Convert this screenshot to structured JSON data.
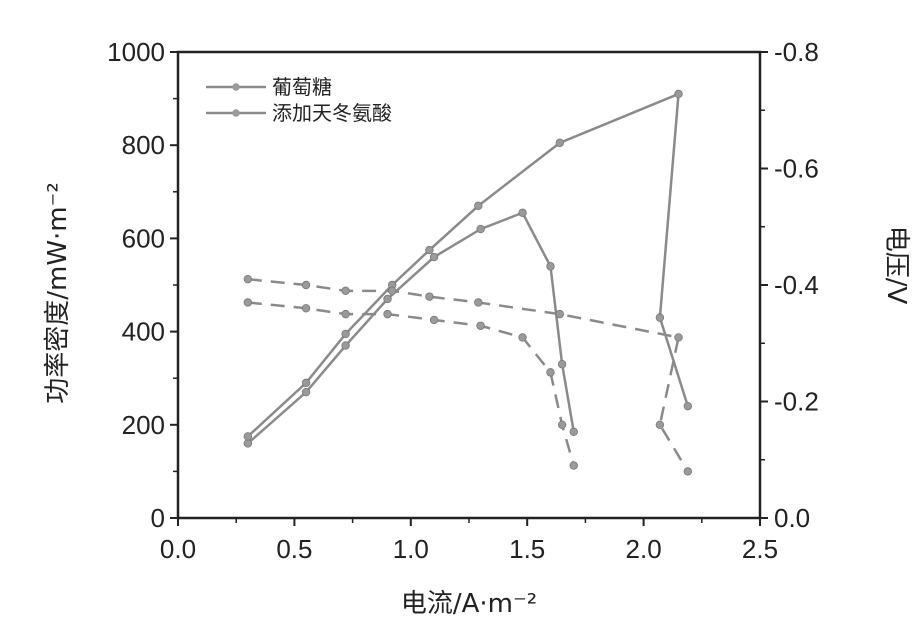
{
  "chart_data": {
    "type": "line",
    "xlabel": "电流/A·m⁻²",
    "ylabel_left": "功率密度/mW·m⁻²",
    "ylabel_right": "电压/V",
    "xlim": [
      0.0,
      2.5
    ],
    "ylim_left": [
      0,
      1000
    ],
    "ylim_right": [
      0.0,
      -0.8
    ],
    "x_ticks": [
      "0.0",
      "0.5",
      "1.0",
      "1.5",
      "2.0",
      "2.5"
    ],
    "y_left_ticks": [
      "0",
      "200",
      "400",
      "600",
      "800",
      "1000"
    ],
    "y_right_ticks": [
      "0.0",
      "-0.2",
      "-0.4",
      "-0.6",
      "-0.8"
    ],
    "grid": false,
    "legend_position": "top-left",
    "legend": [
      "葡萄糖",
      "添加天冬氨酸"
    ],
    "series": [
      {
        "name": "葡萄糖",
        "quantity": "power_density",
        "axis": "left",
        "style": "solid",
        "x": [
          0.3,
          0.55,
          0.72,
          0.9,
          1.1,
          1.3,
          1.48,
          1.6,
          1.65,
          1.7
        ],
        "y": [
          160,
          270,
          370,
          470,
          560,
          620,
          655,
          540,
          330,
          185
        ]
      },
      {
        "name": "添加天冬氨酸",
        "quantity": "power_density",
        "axis": "left",
        "style": "solid",
        "x": [
          0.3,
          0.55,
          0.72,
          0.92,
          1.08,
          1.29,
          1.64,
          2.15,
          2.07,
          2.19
        ],
        "y": [
          175,
          290,
          395,
          500,
          575,
          670,
          805,
          910,
          430,
          240
        ]
      },
      {
        "name": "葡萄糖",
        "quantity": "voltage",
        "axis": "right",
        "style": "dashed",
        "x": [
          0.3,
          0.55,
          0.72,
          0.9,
          1.1,
          1.3,
          1.48,
          1.6,
          1.65,
          1.7
        ],
        "y": [
          -0.37,
          -0.36,
          -0.35,
          -0.35,
          -0.34,
          -0.33,
          -0.31,
          -0.25,
          -0.16,
          -0.09
        ]
      },
      {
        "name": "添加天冬氨酸",
        "quantity": "voltage",
        "axis": "right",
        "style": "dashed",
        "x": [
          0.3,
          0.55,
          0.72,
          0.92,
          1.08,
          1.29,
          1.64,
          2.15,
          2.07,
          2.19
        ],
        "y": [
          -0.41,
          -0.4,
          -0.39,
          -0.39,
          -0.38,
          -0.37,
          -0.35,
          -0.31,
          -0.16,
          -0.08
        ]
      }
    ],
    "colors": {
      "axis": "#222222",
      "line": "#8a8a8a",
      "marker": "#9a9a9a"
    }
  }
}
